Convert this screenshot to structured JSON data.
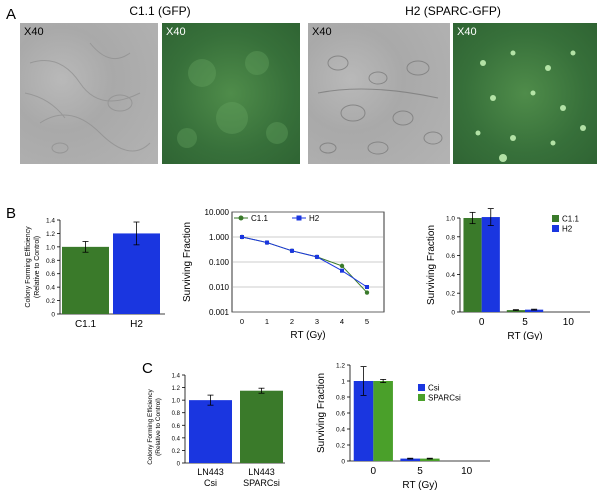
{
  "panel_a": {
    "letter": "A",
    "group1_title": "C1.1 (GFP)",
    "group2_title": "H2 (SPARC-GFP)",
    "magnifications": [
      "X40",
      "X40",
      "X40",
      "X40"
    ]
  },
  "panel_b": {
    "letter": "B"
  },
  "panel_c": {
    "letter": "C"
  },
  "chart_data": [
    {
      "id": "b1",
      "type": "bar",
      "categories": [
        "C1.1",
        "H2"
      ],
      "values": [
        1.0,
        1.2
      ],
      "errors": [
        0.08,
        0.17
      ],
      "colors": [
        "#3a7a2a",
        "#1a36e0"
      ],
      "ylabel": "Colony Forming Efficiency (Relative to Control)",
      "ylabel_lines": [
        "Colony Forming Efficiency",
        "(Relative to Control)"
      ],
      "ylim": [
        0,
        1.4
      ],
      "yticks": [
        "0",
        "0.2",
        "0.4",
        "0.6",
        "0.8",
        "1.0",
        "1.2",
        "1.4"
      ]
    },
    {
      "id": "b2",
      "type": "line",
      "x": [
        0,
        1,
        2,
        3,
        4,
        5
      ],
      "series": [
        {
          "name": "C1.1",
          "color": "#3a7a2a",
          "values": [
            1.0,
            0.6,
            0.28,
            0.16,
            0.07,
            0.006
          ]
        },
        {
          "name": "H2",
          "color": "#1a36e0",
          "values": [
            1.0,
            0.6,
            0.28,
            0.16,
            0.045,
            0.01
          ]
        }
      ],
      "xlabel": "RT (Gy)",
      "ylabel": "Surviving Fraction",
      "yscale": "log",
      "ylim": [
        0.001,
        10
      ],
      "yticks": [
        "0.001",
        "0.010",
        "0.100",
        "1.000",
        "10.000"
      ],
      "xticks": [
        "0",
        "1",
        "2",
        "3",
        "4",
        "5"
      ],
      "grid": "horizontal",
      "legend": "top"
    },
    {
      "id": "b3",
      "type": "bar",
      "categories": [
        "0",
        "5",
        "10"
      ],
      "series": [
        {
          "name": "C1.1",
          "color": "#3a7a2a",
          "values": [
            1.0,
            0.02,
            0.0
          ],
          "errors": [
            0.06,
            0.005,
            0
          ]
        },
        {
          "name": "H2",
          "color": "#1a36e0",
          "values": [
            1.01,
            0.025,
            0.0
          ],
          "errors": [
            0.09,
            0.005,
            0
          ]
        }
      ],
      "xlabel": "RT (Gy)",
      "ylabel": "Surviving Fraction",
      "ylim": [
        0,
        1.0
      ],
      "yticks": [
        "0",
        "0.2",
        "0.4",
        "0.6",
        "0.8",
        "1.0"
      ],
      "legend": "right"
    },
    {
      "id": "c1",
      "type": "bar",
      "categories": [
        "LN443 Csi",
        "LN443 SPARCsi"
      ],
      "category_lines": [
        [
          "LN443",
          "Csi"
        ],
        [
          "LN443",
          "SPARCsi"
        ]
      ],
      "values": [
        1.0,
        1.15
      ],
      "errors": [
        0.08,
        0.04
      ],
      "colors": [
        "#1a36e0",
        "#3a7a2a"
      ],
      "ylabel": "Colony Forming Efficiency (Relative to Control)",
      "ylabel_lines": [
        "Colony Forming Efficiency",
        "(Relative to Control)"
      ],
      "ylim": [
        0,
        1.4
      ],
      "yticks": [
        "0",
        "0.2",
        "0.4",
        "0.6",
        "0.8",
        "1.0",
        "1.2",
        "1.4"
      ]
    },
    {
      "id": "c2",
      "type": "bar",
      "categories": [
        "0",
        "5",
        "10"
      ],
      "series": [
        {
          "name": "Csi",
          "color": "#1a36e0",
          "values": [
            1.0,
            0.03,
            0.0
          ],
          "errors": [
            0.18,
            0.005,
            0
          ]
        },
        {
          "name": "SPARCsi",
          "color": "#4aa02a",
          "values": [
            1.0,
            0.03,
            0.0
          ],
          "errors": [
            0.02,
            0.005,
            0
          ]
        }
      ],
      "xlabel": "RT (Gy)",
      "ylabel": "Surviving Fraction",
      "ylim": [
        0,
        1.2
      ],
      "yticks": [
        "0",
        "0.2",
        "0.4",
        "0.6",
        "0.8",
        "1",
        "1.2"
      ],
      "legend": "right"
    }
  ]
}
